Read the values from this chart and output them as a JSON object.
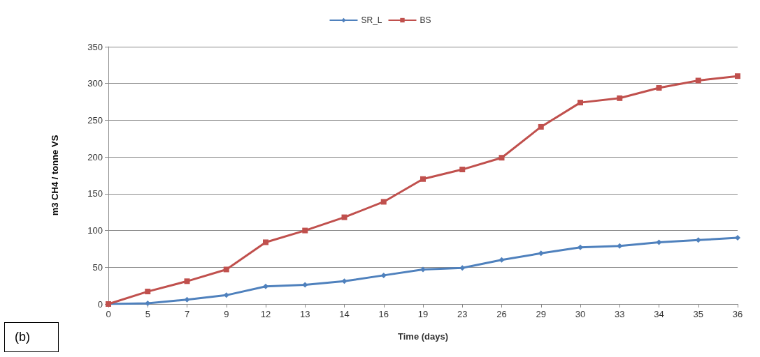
{
  "chart_data": {
    "type": "line",
    "xlabel": "Time (days)",
    "ylabel": "m3 CH4 / tonne VS",
    "categories": [
      "0",
      "5",
      "7",
      "9",
      "12",
      "13",
      "14",
      "16",
      "19",
      "23",
      "26",
      "29",
      "30",
      "33",
      "34",
      "35",
      "36"
    ],
    "series": [
      {
        "name": "SR_L",
        "color": "#4f81bd",
        "marker": "diamond",
        "values": [
          0,
          1,
          6,
          12,
          24,
          26,
          31,
          39,
          47,
          49,
          60,
          69,
          77,
          79,
          84,
          87,
          90
        ]
      },
      {
        "name": "BS",
        "color": "#c0504d",
        "marker": "square",
        "values": [
          0,
          17,
          31,
          47,
          84,
          100,
          118,
          139,
          170,
          183,
          199,
          241,
          274,
          280,
          294,
          304,
          310
        ]
      }
    ],
    "ylim": [
      0,
      350
    ],
    "yticks": [
      0,
      50,
      100,
      150,
      200,
      250,
      300,
      350
    ],
    "grid": "y",
    "legend": "top",
    "line_style": "solid",
    "annotations": [
      "(b)"
    ]
  }
}
